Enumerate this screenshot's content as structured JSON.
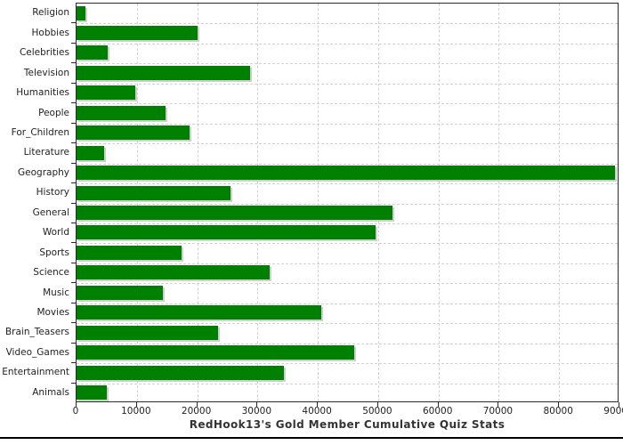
{
  "title": "RedHook13's Gold Member Cumulative Quiz Stats",
  "chart_data": {
    "type": "bar",
    "orientation": "horizontal",
    "title": "RedHook13's Gold Member Cumulative Quiz Stats",
    "xlabel": "",
    "ylabel": "",
    "xlim": [
      0,
      90000
    ],
    "x_ticks": [
      0,
      10000,
      20000,
      30000,
      40000,
      50000,
      60000,
      70000,
      80000,
      90000
    ],
    "grid": true,
    "legend": "none",
    "bar_color": "#008000",
    "categories": [
      "Religion",
      "Hobbies",
      "Celebrities",
      "Television",
      "Humanities",
      "People",
      "For_Children",
      "Literature",
      "Geography",
      "History",
      "General",
      "World",
      "Sports",
      "Science",
      "Music",
      "Movies",
      "Brain_Teasers",
      "Video_Games",
      "Entertainment",
      "Animals"
    ],
    "values": [
      1500,
      20000,
      5200,
      28800,
      9700,
      14800,
      18700,
      4500,
      89300,
      25500,
      52400,
      49600,
      17400,
      32000,
      14300,
      40500,
      23400,
      46000,
      34300,
      5000
    ]
  },
  "colors": {
    "bar": "#008000",
    "bar_shadow": "#cfcfcf",
    "grid": "#d2d2d2",
    "border": "#2b2b2b",
    "text": "#222222",
    "title_text": "#333333",
    "background": "#ffffff"
  }
}
